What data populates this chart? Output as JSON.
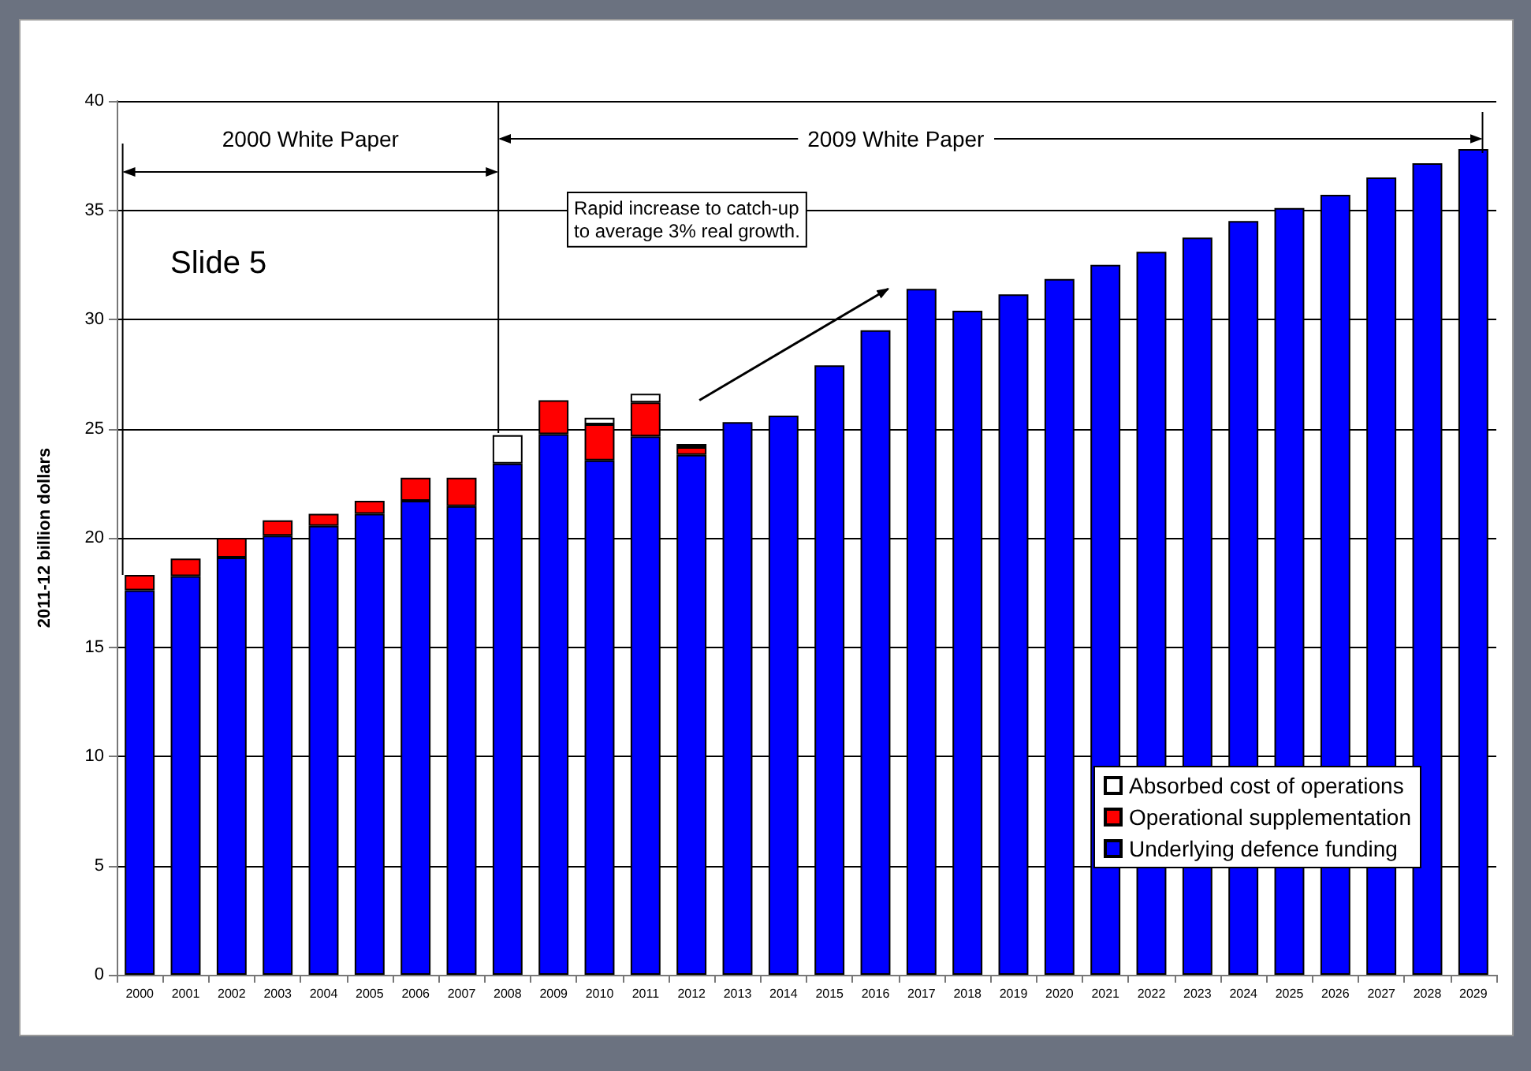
{
  "chart_data": {
    "type": "bar",
    "stacked": true,
    "ylabel": "2011-12 billion dollars",
    "categories": [
      "2000",
      "2001",
      "2002",
      "2003",
      "2004",
      "2005",
      "2006",
      "2007",
      "2008",
      "2009",
      "2010",
      "2011",
      "2012",
      "2013",
      "2014",
      "2015",
      "2016",
      "2017",
      "2018",
      "2019",
      "2020",
      "2021",
      "2022",
      "2023",
      "2024",
      "2025",
      "2026",
      "2027",
      "2028",
      "2029"
    ],
    "series": [
      {
        "name": "Underlying defence funding",
        "color": "#0000ff",
        "values": [
          17.6,
          18.25,
          19.1,
          20.1,
          20.55,
          21.1,
          21.7,
          21.45,
          23.4,
          24.75,
          23.55,
          24.65,
          23.8,
          25.3,
          25.6,
          27.9,
          29.5,
          31.4,
          30.4,
          31.15,
          31.85,
          32.5,
          33.1,
          33.75,
          34.5,
          35.1,
          35.7,
          36.5,
          37.15,
          37.8
        ]
      },
      {
        "name": "Operational supplementation",
        "color": "#ff0000",
        "values": [
          0.7,
          0.8,
          0.9,
          0.7,
          0.55,
          0.6,
          1.05,
          1.3,
          null,
          1.55,
          1.65,
          1.55,
          0.35,
          null,
          null,
          null,
          null,
          null,
          null,
          null,
          null,
          null,
          null,
          null,
          null,
          null,
          null,
          null,
          null,
          null
        ]
      },
      {
        "name": "Absorbed cost of operations",
        "color": "#ffffff",
        "values": [
          null,
          null,
          null,
          null,
          null,
          null,
          null,
          null,
          1.3,
          null,
          0.3,
          0.4,
          0.15,
          null,
          null,
          null,
          null,
          null,
          null,
          null,
          null,
          null,
          null,
          null,
          null,
          null,
          null,
          null,
          null,
          null
        ]
      }
    ],
    "ylim": [
      0,
      40
    ],
    "yticks": [
      0,
      5,
      10,
      15,
      20,
      25,
      30,
      35,
      40
    ],
    "grid": "y",
    "legend": "bottom right",
    "annotations": [
      "2000 White Paper",
      "2009 White Paper",
      "Slide 5",
      "Rapid increase to catch-up\nto average 3% real growth."
    ]
  }
}
